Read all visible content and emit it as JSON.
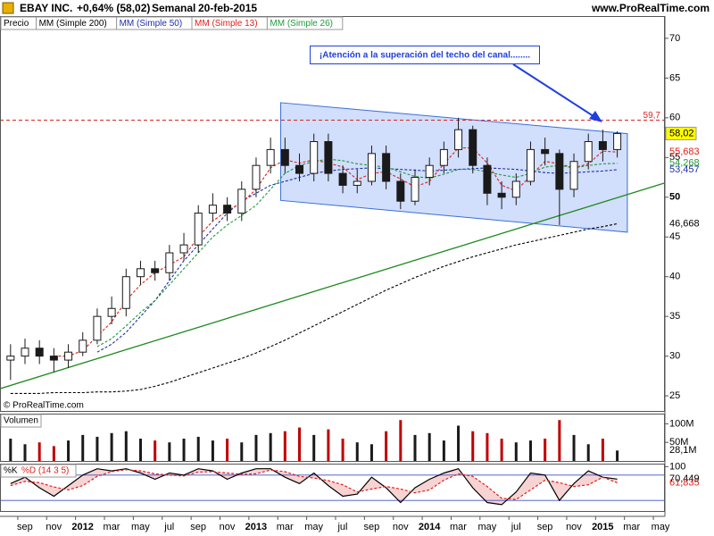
{
  "header": {
    "symbol": "EBAY INC.",
    "change": "+0,64% (58,02)",
    "period": "Semanal",
    "date": "20-feb-2015",
    "site": "www.ProRealTime.com",
    "copyright": "© ProRealTime.com"
  },
  "chart_data": [
    {
      "type": "candlestick",
      "legend_title": "Precio",
      "x": [
        -0.5,
        0.5,
        1.5,
        2.5,
        3.5,
        4.5,
        5.5,
        6.5,
        7.5,
        8.5,
        9.5,
        10.5,
        11.5,
        12.5,
        13.5,
        14.5,
        15.5,
        16.5,
        17.5,
        18.5,
        19.5,
        20.5,
        21.5,
        22.5,
        23.5,
        24.5,
        25.5,
        26.5,
        27.5,
        28.5,
        29.5,
        30.5,
        31.5,
        32.5,
        33.5,
        34.5,
        35.5,
        36.5,
        37.5,
        38.5,
        39.5,
        40.5,
        41.5
      ],
      "open": [
        29.5,
        30.0,
        31.0,
        30.0,
        29.5,
        30.5,
        32.0,
        35.0,
        36.0,
        40.0,
        41.0,
        40.5,
        43.0,
        44.0,
        48.0,
        49.0,
        48.0,
        51.0,
        54.0,
        56.0,
        54.0,
        53.0,
        57.0,
        53.0,
        51.5,
        52.0,
        55.5,
        52.0,
        49.5,
        52.5,
        54.0,
        56.0,
        58.5,
        54.0,
        50.5,
        50.0,
        52.0,
        56.0,
        55.5,
        51.0,
        54.5,
        57.0,
        56.0
      ],
      "high": [
        31.5,
        32.2,
        32.0,
        31.0,
        31.5,
        33.0,
        36.0,
        37.5,
        41.0,
        42.0,
        42.0,
        44.0,
        45.5,
        49.0,
        50.5,
        50.0,
        52.0,
        55.0,
        57.5,
        57.5,
        55.5,
        58.0,
        58.0,
        54.0,
        53.5,
        56.5,
        56.5,
        53.0,
        53.5,
        55.0,
        57.0,
        60.0,
        59.0,
        55.0,
        52.0,
        53.0,
        57.0,
        57.5,
        56.0,
        55.5,
        58.0,
        58.5,
        58.3
      ],
      "low": [
        27.0,
        29.0,
        29.0,
        28.0,
        28.5,
        30.0,
        31.5,
        34.0,
        35.0,
        39.0,
        39.5,
        39.5,
        42.0,
        43.0,
        47.0,
        47.0,
        47.0,
        50.0,
        53.0,
        53.0,
        52.0,
        52.0,
        52.0,
        50.5,
        50.5,
        51.5,
        51.0,
        48.5,
        49.0,
        51.5,
        53.0,
        55.0,
        53.0,
        49.0,
        48.5,
        49.0,
        51.5,
        54.0,
        46.5,
        50.0,
        53.5,
        54.5,
        55.0
      ],
      "close": [
        30.0,
        31.0,
        30.0,
        29.5,
        30.5,
        32.0,
        35.0,
        36.0,
        40.0,
        41.0,
        40.5,
        43.0,
        44.0,
        48.0,
        49.0,
        48.0,
        51.0,
        54.0,
        56.0,
        54.0,
        53.0,
        57.0,
        53.0,
        51.5,
        52.0,
        55.5,
        52.0,
        49.5,
        52.5,
        54.0,
        56.0,
        58.5,
        54.0,
        50.5,
        50.0,
        52.0,
        56.0,
        55.5,
        51.0,
        54.5,
        57.0,
        56.0,
        58.02
      ],
      "up_color": "#ffffff",
      "down_color": "#1a1a1a",
      "last_label": "58,02",
      "last_color": "#ffff00",
      "xlim": [
        -1.23,
        44.8
      ],
      "ylim": [
        23.1,
        72.8
      ],
      "yticks": [
        25,
        30,
        35,
        40,
        45,
        50,
        55,
        60,
        65,
        70
      ],
      "hline": {
        "value": 59.7,
        "label": "59,7",
        "color": "#d62728"
      },
      "series": [
        {
          "name": "MM (Simple 200)",
          "color": "#000000",
          "last_label": "46,668",
          "values": [
            25.3,
            25.3,
            25.3,
            25.4,
            25.4,
            25.4,
            25.5,
            25.5,
            25.6,
            25.8,
            26.2,
            26.7,
            27.3,
            27.9,
            28.5,
            29.1,
            29.7,
            30.4,
            31.2,
            32.0,
            32.9,
            33.8,
            34.7,
            35.6,
            36.5,
            37.4,
            38.3,
            39.1,
            39.9,
            40.6,
            41.3,
            41.9,
            42.5,
            43.0,
            43.5,
            44.0,
            44.4,
            44.8,
            45.2,
            45.6,
            46.0,
            46.3,
            46.668
          ]
        },
        {
          "name": "MM (Simple 50)",
          "color": "#1f2fa8",
          "last_label": "53,457",
          "values": [
            null,
            null,
            null,
            null,
            null,
            null,
            30.5,
            31.5,
            33.0,
            35.0,
            37.0,
            39.5,
            42.0,
            44.0,
            46.0,
            48.0,
            49.5,
            50.5,
            51.5,
            52.0,
            52.5,
            53.0,
            53.3,
            53.5,
            53.6,
            53.7,
            53.6,
            53.5,
            53.4,
            53.3,
            53.4,
            53.5,
            53.6,
            53.7,
            53.6,
            53.5,
            53.3,
            53.1,
            53.0,
            53.1,
            53.2,
            53.3,
            53.457
          ]
        },
        {
          "name": "MM (Simple 13)",
          "color": "#e0201a",
          "last_label": "55,683",
          "values": [
            null,
            null,
            null,
            30,
            30,
            30.7,
            32.5,
            34.3,
            37,
            39,
            40.5,
            41.5,
            42.5,
            45,
            47,
            48.3,
            49.3,
            51,
            53.7,
            54.7,
            54.3,
            54.7,
            54.3,
            53.8,
            52.2,
            53,
            53.2,
            52.3,
            51.3,
            52,
            54.2,
            56.2,
            56.2,
            54.3,
            51.5,
            50.8,
            52.7,
            54.5,
            54.2,
            53.7,
            54.2,
            55.8,
            55.683
          ]
        },
        {
          "name": "MM (Simple 26)",
          "color": "#1f9a3a",
          "last_label": "54,268",
          "values": [
            null,
            null,
            null,
            null,
            null,
            null,
            31.2,
            32.2,
            33.8,
            35.5,
            37,
            39,
            41,
            43,
            45,
            46.5,
            47.7,
            49,
            51,
            53,
            54,
            54.5,
            54.8,
            54.6,
            54.2,
            54,
            53.8,
            53.2,
            52.6,
            52.4,
            52.9,
            53.5,
            53.5,
            53.2,
            52.8,
            52.5,
            53,
            53.8,
            54,
            53.7,
            54,
            54.2,
            54.268
          ]
        }
      ],
      "trendline": {
        "color": "#1f8a1f",
        "x": [
          -1.23,
          44.8
        ],
        "y": [
          25.9,
          51.8
        ]
      },
      "channel": {
        "color": "#3a6fd8",
        "fill": "#c6d6fb",
        "x": [
          18.2,
          42.2,
          42.2,
          18.2
        ],
        "y": [
          61.9,
          58.0,
          45.6,
          49.6
        ]
      },
      "annotation": "¡Atención a la superación del techo del canal........"
    },
    {
      "type": "bar",
      "title": "Volumen",
      "x": [
        -0.5,
        0.5,
        1.5,
        2.5,
        3.5,
        4.5,
        5.5,
        6.5,
        7.5,
        8.5,
        9.5,
        10.5,
        11.5,
        12.5,
        13.5,
        14.5,
        15.5,
        16.5,
        17.5,
        18.5,
        19.5,
        20.5,
        21.5,
        22.5,
        23.5,
        24.5,
        25.5,
        26.5,
        27.5,
        28.5,
        29.5,
        30.5,
        31.5,
        32.5,
        33.5,
        34.5,
        35.5,
        36.5,
        37.5,
        38.5,
        39.5,
        40.5,
        41.5
      ],
      "values": [
        60,
        45,
        50,
        40,
        55,
        70,
        65,
        75,
        80,
        60,
        55,
        50,
        60,
        65,
        55,
        60,
        50,
        70,
        75,
        80,
        90,
        70,
        85,
        60,
        50,
        45,
        80,
        110,
        70,
        75,
        55,
        95,
        80,
        75,
        60,
        50,
        55,
        60,
        110,
        70,
        45,
        60,
        28.1
      ],
      "up_color": "#1a1a1a",
      "down_color": "#c00000",
      "last_label": "28,1M",
      "xlim": [
        -1.23,
        44.8
      ],
      "ylim": [
        0,
        125
      ],
      "yticks": [
        {
          "value": 100,
          "label": "100M"
        },
        {
          "value": 50,
          "label": "50M"
        }
      ]
    },
    {
      "type": "line",
      "title": "%K",
      "x": [
        -0.5,
        0.5,
        1.5,
        2.5,
        3.5,
        4.5,
        5.5,
        6.5,
        7.5,
        8.5,
        9.5,
        10.5,
        11.5,
        12.5,
        13.5,
        14.5,
        15.5,
        16.5,
        17.5,
        18.5,
        19.5,
        20.5,
        21.5,
        22.5,
        23.5,
        24.5,
        25.5,
        26.5,
        27.5,
        28.5,
        29.5,
        30.5,
        31.5,
        32.5,
        33.5,
        34.5,
        35.5,
        36.5,
        37.5,
        38.5,
        39.5,
        40.5,
        41.5
      ],
      "series": [
        {
          "name": "%K",
          "color": "#000000",
          "last_label": "70,449",
          "values": [
            60,
            75,
            50,
            30,
            55,
            80,
            95,
            90,
            95,
            85,
            70,
            85,
            80,
            95,
            90,
            70,
            85,
            95,
            95,
            75,
            60,
            85,
            55,
            30,
            35,
            75,
            50,
            15,
            50,
            70,
            85,
            95,
            50,
            15,
            10,
            40,
            85,
            80,
            20,
            60,
            90,
            75,
            70.449
          ]
        },
        {
          "name": "%D (14 3 5)",
          "color": "#e0201a",
          "last_label": "61,835",
          "values": [
            55,
            65,
            62,
            52,
            45,
            55,
            77,
            88,
            93,
            90,
            83,
            80,
            78,
            87,
            88,
            85,
            82,
            83,
            92,
            88,
            77,
            73,
            67,
            57,
            40,
            47,
            53,
            47,
            38,
            45,
            68,
            83,
            77,
            53,
            25,
            22,
            45,
            68,
            62,
            53,
            57,
            75,
            61.835
          ]
        }
      ],
      "levels": [
        80,
        20
      ],
      "xlim": [
        -1.23,
        44.8
      ],
      "ylim": [
        -5,
        105
      ],
      "yticks": [
        100
      ],
      "xticks": [
        {
          "value": 0,
          "label": "sep"
        },
        {
          "value": 2,
          "label": "nov"
        },
        {
          "value": 4,
          "label": "2012"
        },
        {
          "value": 6,
          "label": "mar"
        },
        {
          "value": 8,
          "label": "may"
        },
        {
          "value": 10,
          "label": "jul"
        },
        {
          "value": 12,
          "label": "sep"
        },
        {
          "value": 14,
          "label": "nov"
        },
        {
          "value": 16,
          "label": "2013"
        },
        {
          "value": 18,
          "label": "mar"
        },
        {
          "value": 20,
          "label": "may"
        },
        {
          "value": 22,
          "label": "jul"
        },
        {
          "value": 24,
          "label": "sep"
        },
        {
          "value": 26,
          "label": "nov"
        },
        {
          "value": 28,
          "label": "2014"
        },
        {
          "value": 30,
          "label": "mar"
        },
        {
          "value": 32,
          "label": "may"
        },
        {
          "value": 34,
          "label": "jul"
        },
        {
          "value": 36,
          "label": "sep"
        },
        {
          "value": 38,
          "label": "nov"
        },
        {
          "value": 40,
          "label": "2015"
        },
        {
          "value": 42,
          "label": "mar"
        },
        {
          "value": 44,
          "label": "may"
        }
      ]
    }
  ]
}
